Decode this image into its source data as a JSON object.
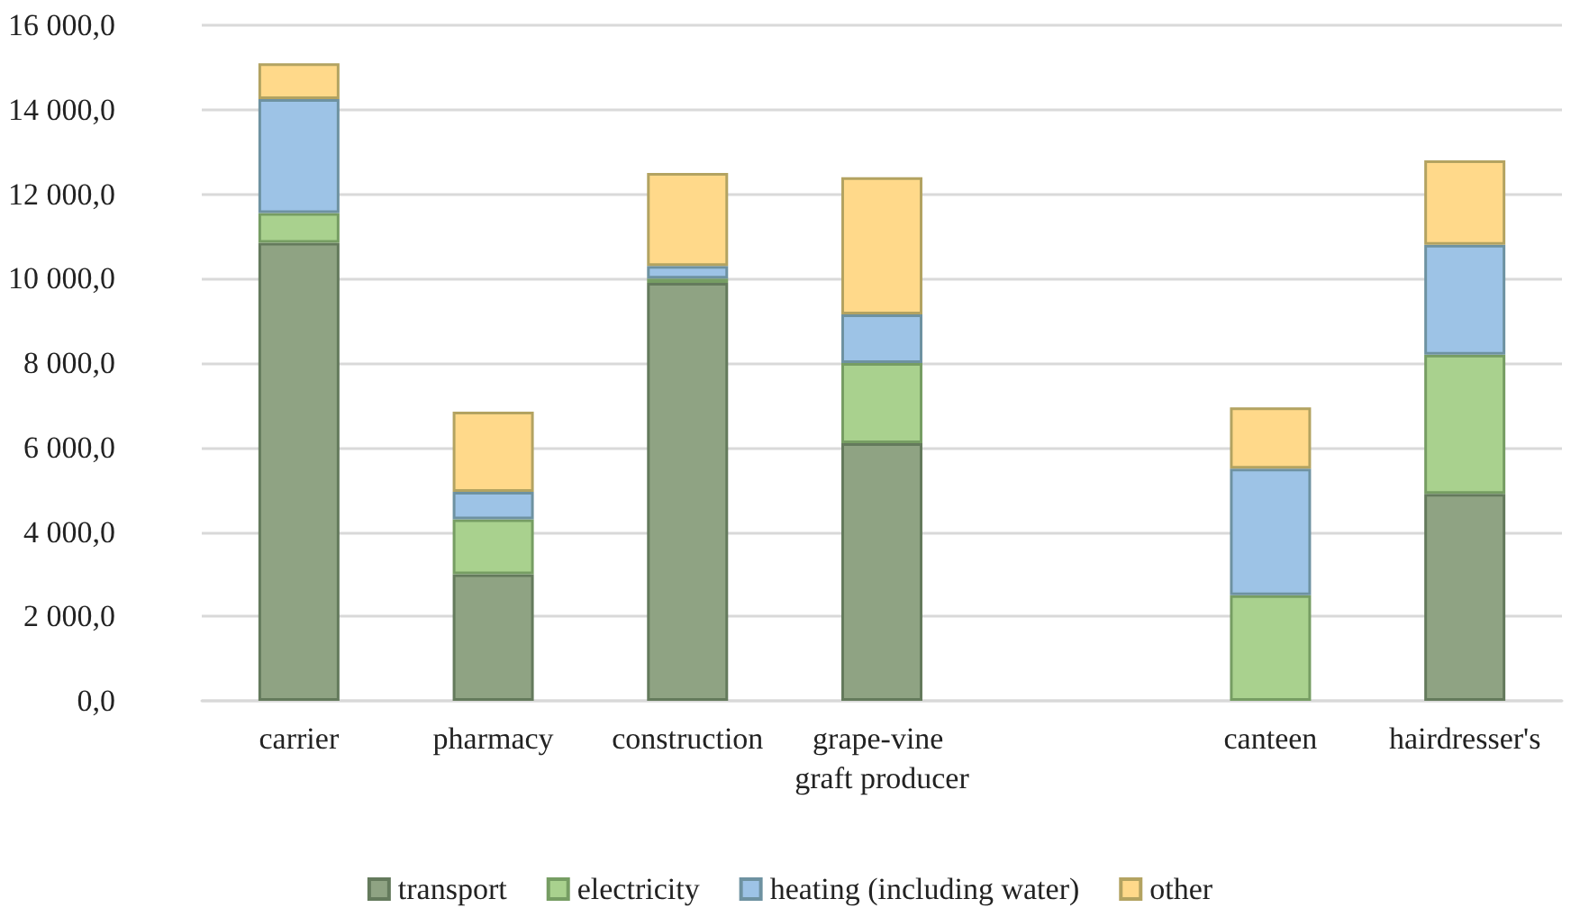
{
  "chart_data": {
    "type": "bar",
    "stacked": true,
    "categories": [
      "carrier",
      "pharmacy",
      "construction",
      "grape-vine graft producer",
      null,
      "canteen",
      "hairdresser's"
    ],
    "series": [
      {
        "name": "transport",
        "color": "#8fa383",
        "values": [
          10850,
          3000,
          9900,
          6100,
          null,
          null,
          4900
        ]
      },
      {
        "name": "electricity",
        "color": "#a9d18e",
        "values": [
          700,
          1300,
          100,
          1900,
          null,
          2500,
          3300
        ]
      },
      {
        "name": "heating (including water)",
        "color": "#9dc3e6",
        "values": [
          2700,
          650,
          300,
          1150,
          null,
          3000,
          2600
        ]
      },
      {
        "name": "other",
        "color": "#ffd98a",
        "values": [
          850,
          1900,
          2200,
          3250,
          null,
          1450,
          2000
        ]
      }
    ],
    "ylim": [
      0,
      16000
    ],
    "yticks": [
      {
        "value": 0,
        "label": "0,0"
      },
      {
        "value": 2000,
        "label": "2 000,0"
      },
      {
        "value": 4000,
        "label": "4 000,0"
      },
      {
        "value": 6000,
        "label": "6 000,0"
      },
      {
        "value": 8000,
        "label": "8 000,0"
      },
      {
        "value": 10000,
        "label": "10 000,0"
      },
      {
        "value": 12000,
        "label": "12 000,0"
      },
      {
        "value": 14000,
        "label": "14 000,0"
      },
      {
        "value": 16000,
        "label": "16 000,0"
      }
    ],
    "grid": "y",
    "legend": "bottom"
  }
}
